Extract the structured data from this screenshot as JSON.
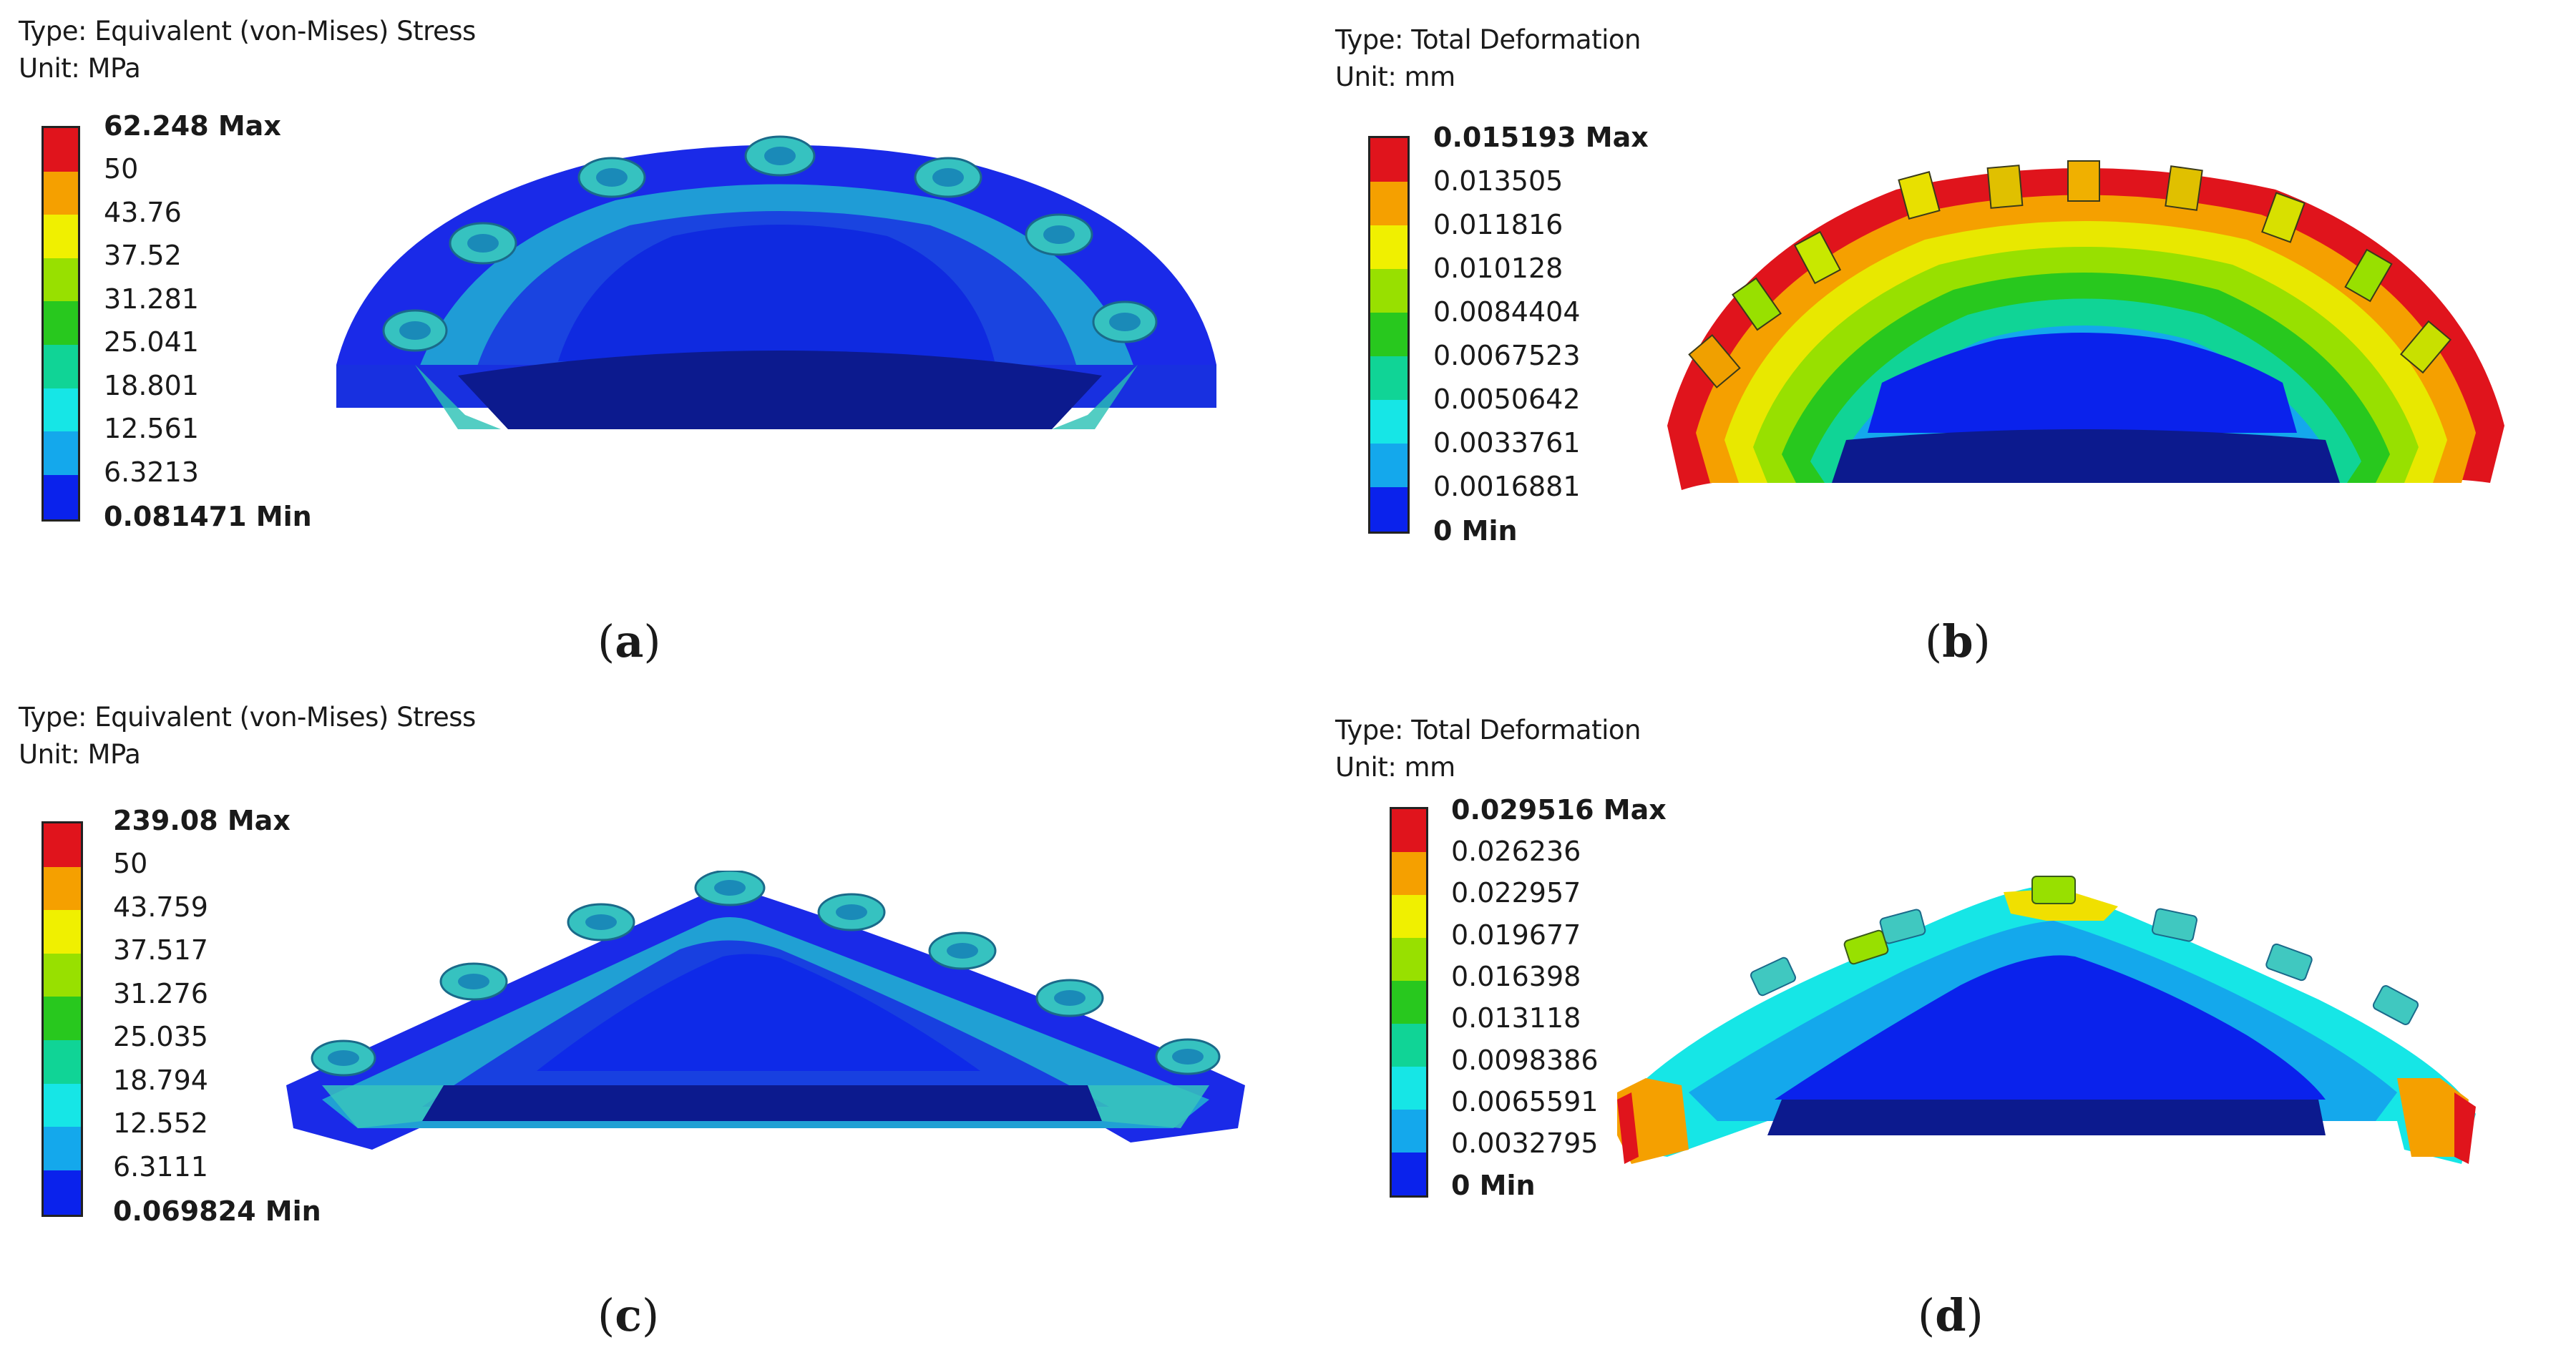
{
  "panels": [
    {
      "id": "a",
      "type_text": "Type: Equivalent (von-Mises) Stress",
      "unit_text": "Unit: MPa",
      "legend": [
        "62.248 Max",
        "50",
        "43.76",
        "37.52",
        "31.281",
        "25.041",
        "18.801",
        "12.561",
        "6.3213",
        "0.081471 Min"
      ],
      "caption_open": "(",
      "caption_letter": "a",
      "caption_close": ")"
    },
    {
      "id": "b",
      "type_text": "Type: Total Deformation",
      "unit_text": "Unit: mm",
      "legend": [
        "0.015193 Max",
        "0.013505",
        "0.011816",
        "0.010128",
        "0.0084404",
        "0.0067523",
        "0.0050642",
        "0.0033761",
        "0.0016881",
        "0 Min"
      ],
      "caption_open": "(",
      "caption_letter": "b",
      "caption_close": ")"
    },
    {
      "id": "c",
      "type_text": "Type: Equivalent (von-Mises) Stress",
      "unit_text": "Unit: MPa",
      "legend": [
        "239.08 Max",
        "50",
        "43.759",
        "37.517",
        "31.276",
        "25.035",
        "18.794",
        "12.552",
        "6.3111",
        "0.069824 Min"
      ],
      "caption_open": "(",
      "caption_letter": "c",
      "caption_close": ")"
    },
    {
      "id": "d",
      "type_text": "Type: Total Deformation",
      "unit_text": "Unit: mm",
      "legend": [
        "0.029516 Max",
        "0.026236",
        "0.022957",
        "0.019677",
        "0.016398",
        "0.013118",
        "0.0098386",
        "0.0065591",
        "0.0032795",
        "0 Min"
      ],
      "caption_open": "(",
      "caption_letter": "d",
      "caption_close": ")"
    }
  ],
  "colors": {
    "scale": [
      "#e0141c",
      "#f5a000",
      "#f0f000",
      "#98e000",
      "#28c81e",
      "#10d496",
      "#16e6e6",
      "#14a8ec",
      "#0a22ec"
    ],
    "mesh_blue": "#1a2ae8",
    "deep_blue": "#0c1a8e",
    "light_blue": "#20b4d8",
    "cyan": "#3ed0c8"
  }
}
